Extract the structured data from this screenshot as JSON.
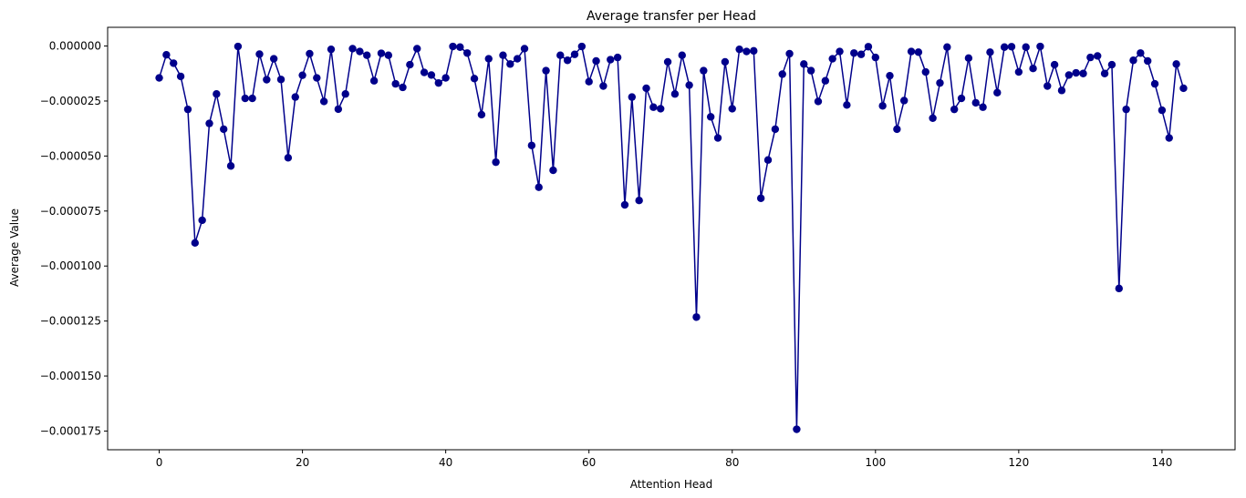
{
  "chart_data": {
    "type": "line",
    "title": "Average transfer per Head",
    "xlabel": "Attention Head",
    "ylabel": "Average Value",
    "xlim": [
      -7.2,
      150.2
    ],
    "ylim": [
      -0.0001835,
      8.5e-06
    ],
    "xticks": [
      0,
      20,
      40,
      60,
      80,
      100,
      120,
      140
    ],
    "xtick_labels": [
      "0",
      "20",
      "40",
      "60",
      "80",
      "100",
      "120",
      "140"
    ],
    "yticks": [
      0.0,
      -2.5e-05,
      -5e-05,
      -7.5e-05,
      -0.0001,
      -0.000125,
      -0.00015,
      -0.000175
    ],
    "ytick_labels": [
      "0.000000",
      "−0.000025",
      "−0.000050",
      "−0.000075",
      "−0.000100",
      "−0.000125",
      "−0.000150",
      "−0.000175"
    ],
    "grid": false,
    "legend": false,
    "series": [
      {
        "color": "#00008b",
        "marker": "circle",
        "x": [
          0,
          1,
          2,
          3,
          4,
          5,
          6,
          7,
          8,
          9,
          10,
          11,
          12,
          13,
          14,
          15,
          16,
          17,
          18,
          19,
          20,
          21,
          22,
          23,
          24,
          25,
          26,
          27,
          28,
          29,
          30,
          31,
          32,
          33,
          34,
          35,
          36,
          37,
          38,
          39,
          40,
          41,
          42,
          43,
          44,
          45,
          46,
          47,
          48,
          49,
          50,
          51,
          52,
          53,
          54,
          55,
          56,
          57,
          58,
          59,
          60,
          61,
          62,
          63,
          64,
          65,
          66,
          67,
          68,
          69,
          70,
          71,
          72,
          73,
          74,
          75,
          76,
          77,
          78,
          79,
          80,
          81,
          82,
          83,
          84,
          85,
          86,
          87,
          88,
          89,
          90,
          91,
          92,
          93,
          94,
          95,
          96,
          97,
          98,
          99,
          100,
          101,
          102,
          103,
          104,
          105,
          106,
          107,
          108,
          109,
          110,
          111,
          112,
          113,
          114,
          115,
          116,
          117,
          118,
          119,
          120,
          121,
          122,
          123,
          124,
          125,
          126,
          127,
          128,
          129,
          130,
          131,
          132,
          133,
          134,
          135,
          136,
          137,
          138,
          139,
          140,
          141,
          142,
          143
        ],
        "values": [
          -1.45e-05,
          -4e-06,
          -7.8e-06,
          -1.38e-05,
          -2.88e-05,
          -8.95e-05,
          -7.92e-05,
          -3.52e-05,
          -2.18e-05,
          -3.78e-05,
          -5.45e-05,
          -2e-07,
          -2.38e-05,
          -2.38e-05,
          -3.7e-06,
          -1.53e-05,
          -5.8e-06,
          -1.52e-05,
          -5.08e-05,
          -2.32e-05,
          -1.33e-05,
          -3.5e-06,
          -1.45e-05,
          -2.52e-05,
          -1.5e-06,
          -2.87e-05,
          -2.18e-05,
          -1.2e-06,
          -2.5e-06,
          -4.2e-06,
          -1.58e-05,
          -3.3e-06,
          -4.2e-06,
          -1.72e-05,
          -1.88e-05,
          -8.5e-06,
          -1.2e-06,
          -1.2e-05,
          -1.32e-05,
          -1.68e-05,
          -1.45e-05,
          -2e-07,
          -5e-07,
          -3.2e-06,
          -1.48e-05,
          -3.12e-05,
          -5.8e-06,
          -5.28e-05,
          -4.2e-06,
          -8.2e-06,
          -5.8e-06,
          -1.2e-06,
          -4.52e-05,
          -6.42e-05,
          -1.12e-05,
          -5.65e-05,
          -4.2e-06,
          -6.5e-06,
          -3.8e-06,
          -2e-07,
          -1.62e-05,
          -6.8e-06,
          -1.82e-05,
          -6.2e-06,
          -5.2e-06,
          -7.22e-05,
          -2.32e-05,
          -7.02e-05,
          -1.92e-05,
          -2.78e-05,
          -2.85e-05,
          -7.2e-06,
          -2.18e-05,
          -4.2e-06,
          -1.78e-05,
          -0.0001232,
          -1.12e-05,
          -3.22e-05,
          -4.18e-05,
          -7.2e-06,
          -2.85e-05,
          -1.5e-06,
          -2.5e-06,
          -2.2e-06,
          -6.92e-05,
          -5.18e-05,
          -3.78e-05,
          -1.28e-05,
          -3.5e-06,
          -0.0001742,
          -8.2e-06,
          -1.12e-05,
          -2.52e-05,
          -1.58e-05,
          -5.8e-06,
          -2.5e-06,
          -2.68e-05,
          -3.2e-06,
          -3.8e-06,
          -3e-07,
          -5.2e-06,
          -2.72e-05,
          -1.35e-05,
          -3.78e-05,
          -2.48e-05,
          -2.5e-06,
          -2.8e-06,
          -1.18e-05,
          -3.28e-05,
          -1.68e-05,
          -5e-07,
          -2.88e-05,
          -2.38e-05,
          -5.5e-06,
          -2.58e-05,
          -2.78e-05,
          -2.8e-06,
          -2.12e-05,
          -5e-07,
          -3e-07,
          -1.18e-05,
          -5e-07,
          -1.02e-05,
          -2e-07,
          -1.82e-05,
          -8.5e-06,
          -2.02e-05,
          -1.32e-05,
          -1.22e-05,
          -1.25e-05,
          -5.2e-06,
          -4.5e-06,
          -1.25e-05,
          -8.5e-06,
          -0.0001102,
          -2.88e-05,
          -6.5e-06,
          -3.2e-06,
          -6.8e-06,
          -1.72e-05,
          -2.92e-05,
          -4.18e-05,
          -8.2e-06,
          -1.92e-05
        ]
      }
    ]
  }
}
